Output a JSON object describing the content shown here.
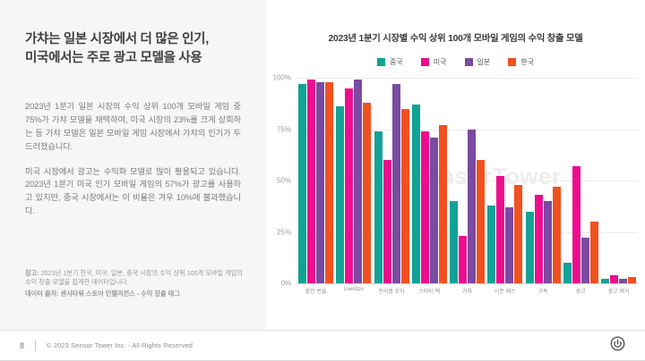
{
  "left_panel": {
    "title_line1": "가챠는 일본 시장에서 더 많은 인기,",
    "title_line2": "미국에서는 주로 광고 모델을 사용",
    "paragraph1": "2023년 1분기 일본 시장의 수익 상위 100개 모바일 게임 중 75%가 가챠 모델을 채택하여, 미국 시장의 23%를 크게 상회하는 등 가챠 모델은 일본 모바일 게임 시장에서 가챠의 인기가 두드러졌습니다.",
    "paragraph2": "미국 시장에서 광고는 수익화 모델로 많이 활용되고 있습니다. 2023년 1분기 미국 인기 모바일 게임의 57%가 광고를 사용하고 있지만, 중국 시장에서는 이 비율은 겨우 10%에 불과했습니다.",
    "note_label": "참고:",
    "note_text": " 2023년 1분기 한국, 미국, 일본, 중국 시장의 수익 상위 100개 모바일 게임의 수익 창출 모델을 집계한 데이터입니다.",
    "source_text": "데이터 출처: 센서타워 스토어 인텔리전스 - 수익 창출 태그"
  },
  "chart_data": {
    "type": "bar",
    "title": "2023년 1분기 시장별 수익 상위 100개 모바일 게임의 수익 창출 모델",
    "categories": [
      "할인 번들",
      "LiveOps",
      "전리품 상자",
      "스타터 팩",
      "가챠",
      "시즌 패스",
      "구독",
      "광고",
      "광고 제거"
    ],
    "series": [
      {
        "name": "중국",
        "color": "#12a296",
        "values": [
          97,
          86,
          74,
          87,
          40,
          38,
          35,
          10,
          2
        ]
      },
      {
        "name": "미국",
        "color": "#ee0d8e",
        "values": [
          99,
          95,
          60,
          74,
          23,
          52,
          43,
          57,
          4
        ]
      },
      {
        "name": "일본",
        "color": "#7a4ba1",
        "values": [
          98,
          99,
          97,
          71,
          75,
          37,
          40,
          22,
          2
        ]
      },
      {
        "name": "한국",
        "color": "#f1511f",
        "values": [
          98,
          88,
          85,
          77,
          60,
          48,
          47,
          30,
          3
        ]
      }
    ],
    "ylabel": "",
    "xlabel": "",
    "ylim": [
      0,
      100
    ],
    "yticks": [
      "100%",
      "75%",
      "50%",
      "25%",
      "0%"
    ],
    "grid": true,
    "legend_position": "top",
    "watermark_text": "SensorTower"
  },
  "footer": {
    "page_number": "8",
    "copyright": "© 2023 Sensor Tower Inc. - All Rights Reserved"
  }
}
